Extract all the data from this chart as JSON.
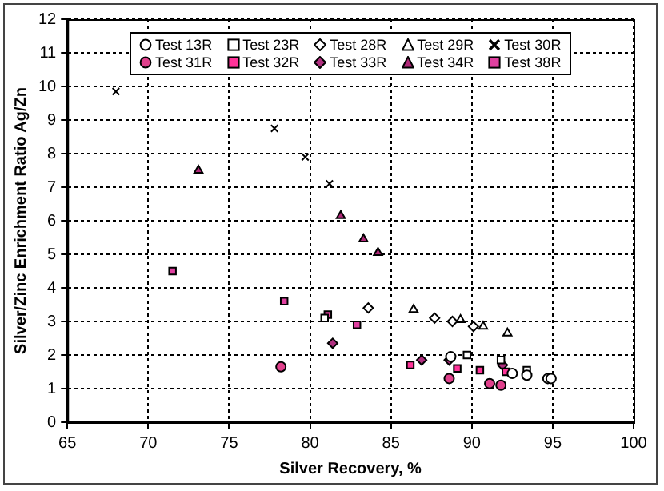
{
  "chart_data": {
    "type": "scatter",
    "xlabel": "Silver Recovery, %",
    "ylabel": "Silver/Zinc Enrichment Ratio Ag/Zn",
    "xlim": [
      65,
      100
    ],
    "xticks": [
      65,
      70,
      75,
      80,
      85,
      90,
      95,
      100
    ],
    "ylim": [
      0,
      12
    ],
    "yticks": [
      0,
      1,
      2,
      3,
      4,
      5,
      6,
      7,
      8,
      9,
      10,
      11,
      12
    ],
    "grid": true,
    "legend": "top",
    "series": [
      {
        "name": "Test 13R",
        "color": "#ffffff",
        "marker": "circle",
        "x": [
          88.7,
          92.5,
          93.4,
          94.7,
          94.9
        ],
        "values": [
          1.95,
          1.45,
          1.4,
          1.3,
          1.3
        ]
      },
      {
        "name": "Test 23R",
        "color": "#ffffff",
        "marker": "square",
        "x": [
          80.9,
          89.7,
          91.8,
          93.4
        ],
        "values": [
          3.1,
          2.0,
          1.85,
          1.55
        ]
      },
      {
        "name": "Test 28R",
        "color": "#ffffff",
        "marker": "diamond",
        "x": [
          83.6,
          87.7,
          88.8,
          90.1
        ],
        "values": [
          3.4,
          3.1,
          3.0,
          2.85
        ]
      },
      {
        "name": "Test 29R",
        "color": "#ffffff",
        "marker": "triangle",
        "x": [
          86.4,
          89.3,
          90.7,
          92.2
        ],
        "values": [
          3.35,
          3.05,
          2.85,
          2.65
        ]
      },
      {
        "name": "Test 30R",
        "color": "#000000",
        "marker": "cross",
        "x": [
          68,
          77.8,
          79.7,
          81.2
        ],
        "values": [
          9.85,
          8.75,
          7.9,
          7.1
        ]
      },
      {
        "name": "Test 31R",
        "color": "#e0408c",
        "marker": "circle",
        "x": [
          78.2,
          88.6,
          91.1,
          91.8
        ],
        "values": [
          1.65,
          1.3,
          1.15,
          1.1
        ]
      },
      {
        "name": "Test 32R",
        "color": "#ff3399",
        "marker": "square",
        "x": [
          86.2,
          89.1,
          90.5,
          92.1
        ],
        "values": [
          1.7,
          1.6,
          1.55,
          1.5
        ]
      },
      {
        "name": "Test 33R",
        "color": "#b03080",
        "marker": "diamond",
        "x": [
          81.4,
          86.9,
          88.6,
          91.9
        ],
        "values": [
          2.35,
          1.85,
          1.85,
          1.7
        ]
      },
      {
        "name": "Test 34R",
        "color": "#b02878",
        "marker": "triangle",
        "x": [
          73.1,
          81.9,
          83.3,
          84.2
        ],
        "values": [
          7.5,
          6.15,
          5.45,
          5.05
        ]
      },
      {
        "name": "Test 38R",
        "color": "#e040a0",
        "marker": "square",
        "x": [
          71.5,
          78.4,
          81.1,
          82.9
        ],
        "values": [
          4.5,
          3.6,
          3.2,
          2.9
        ]
      }
    ]
  }
}
